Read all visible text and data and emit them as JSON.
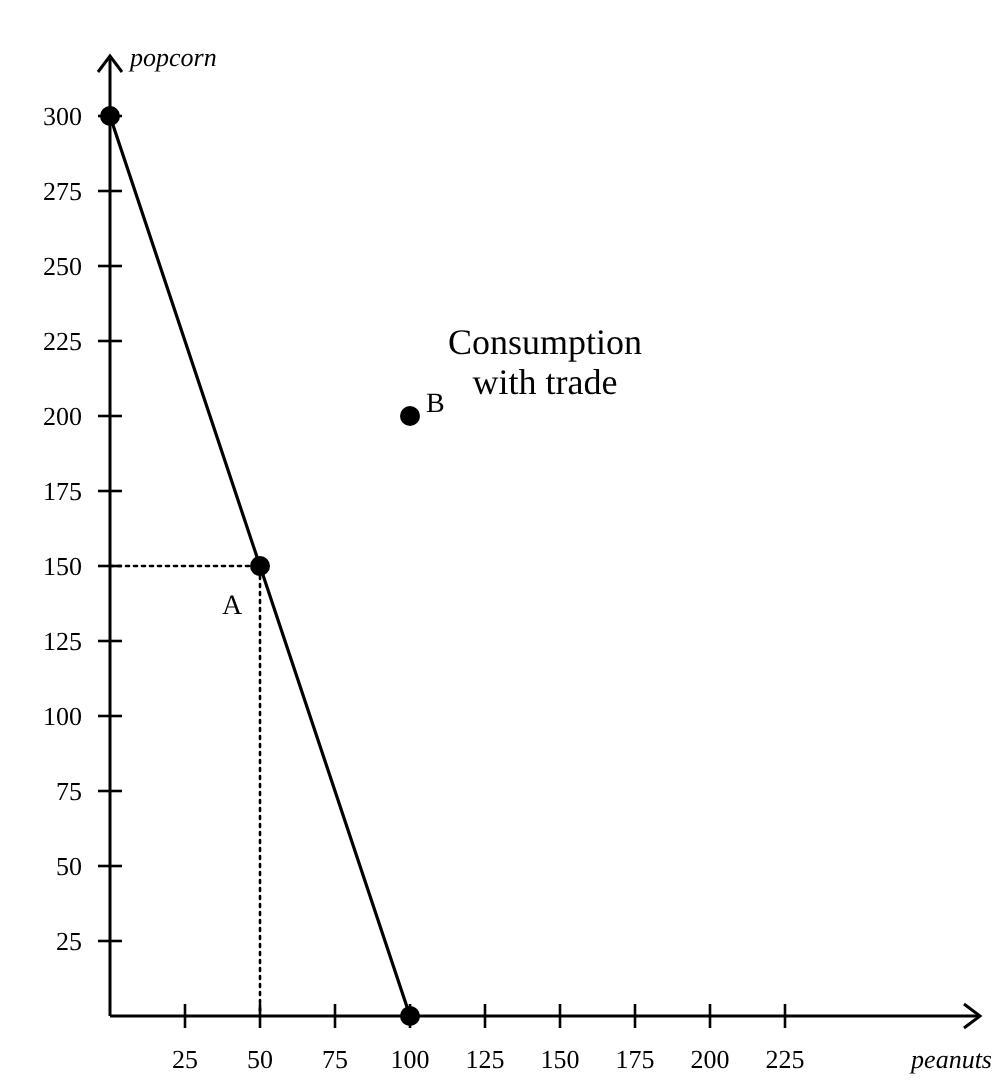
{
  "chart_data": {
    "type": "line",
    "xlabel": "peanuts",
    "ylabel": "popcorn",
    "xlim": [
      0,
      290
    ],
    "ylim": [
      0,
      320
    ],
    "xticks": [
      25,
      50,
      75,
      100,
      125,
      150,
      175,
      200,
      225
    ],
    "yticks": [
      25,
      50,
      75,
      100,
      125,
      150,
      175,
      200,
      225,
      250,
      275,
      300
    ],
    "grid": false,
    "series": [
      {
        "color": "#000000",
        "x": [
          0,
          50,
          100
        ],
        "values": [
          300,
          150,
          0
        ],
        "marker": "circle",
        "line_style": "solid"
      },
      {
        "color": "#000000",
        "x": [
          0,
          50,
          50
        ],
        "values": [
          150,
          150,
          0
        ],
        "marker": "none",
        "line_style": "dotted"
      },
      {
        "type": "scatter",
        "color": "#000000",
        "x": [
          100
        ],
        "values": [
          200
        ],
        "marker": "circle"
      }
    ],
    "annotations": [
      {
        "text": "A",
        "x": 50,
        "y": 150
      },
      {
        "text": "B",
        "x": 100,
        "y": 200
      },
      "Consumption with trade"
    ]
  }
}
